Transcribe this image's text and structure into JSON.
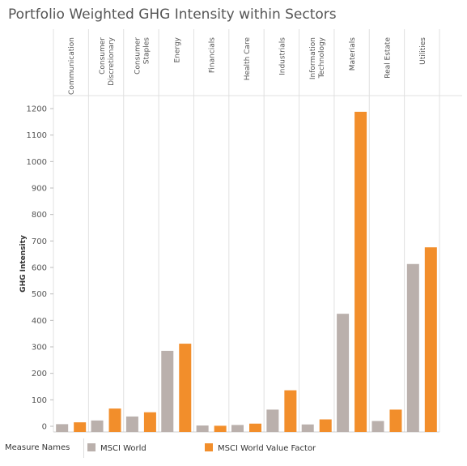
{
  "title": "Portfolio Weighted GHG Intensity within Sectors",
  "legend": {
    "heading": "Measure Names",
    "items": [
      {
        "label": "MSCI World",
        "color": "#bab0ac"
      },
      {
        "label": "MSCI World Value Factor",
        "color": "#f28e2b"
      }
    ]
  },
  "chart_data": {
    "type": "bar",
    "title": "Portfolio Weighted GHG Intensity within Sectors",
    "ylabel": "GHG Intensity",
    "xlabel": "",
    "ylim": [
      -20,
      1230
    ],
    "yticks": [
      0,
      100,
      200,
      300,
      400,
      500,
      600,
      700,
      800,
      900,
      1000,
      1100,
      1200
    ],
    "grid": false,
    "legend_position": "bottom",
    "categories": [
      [
        "Communication"
      ],
      [
        "Consumer",
        "Discretionary"
      ],
      [
        "Consumer",
        "Staples"
      ],
      [
        "Energy"
      ],
      [
        "Financials"
      ],
      [
        "Health Care"
      ],
      [
        "Industrials"
      ],
      [
        "Information",
        "Technology"
      ],
      [
        "Materials"
      ],
      [
        "Real Estate"
      ],
      [
        "Utilities"
      ]
    ],
    "series": [
      {
        "name": "MSCI World",
        "color": "#bab0ac",
        "values": [
          8,
          22,
          37,
          285,
          3,
          5,
          63,
          7,
          425,
          20,
          613
        ]
      },
      {
        "name": "MSCI World Value Factor",
        "color": "#f28e2b",
        "values": [
          15,
          67,
          53,
          312,
          2,
          10,
          136,
          26,
          1188,
          63,
          676
        ]
      }
    ]
  }
}
